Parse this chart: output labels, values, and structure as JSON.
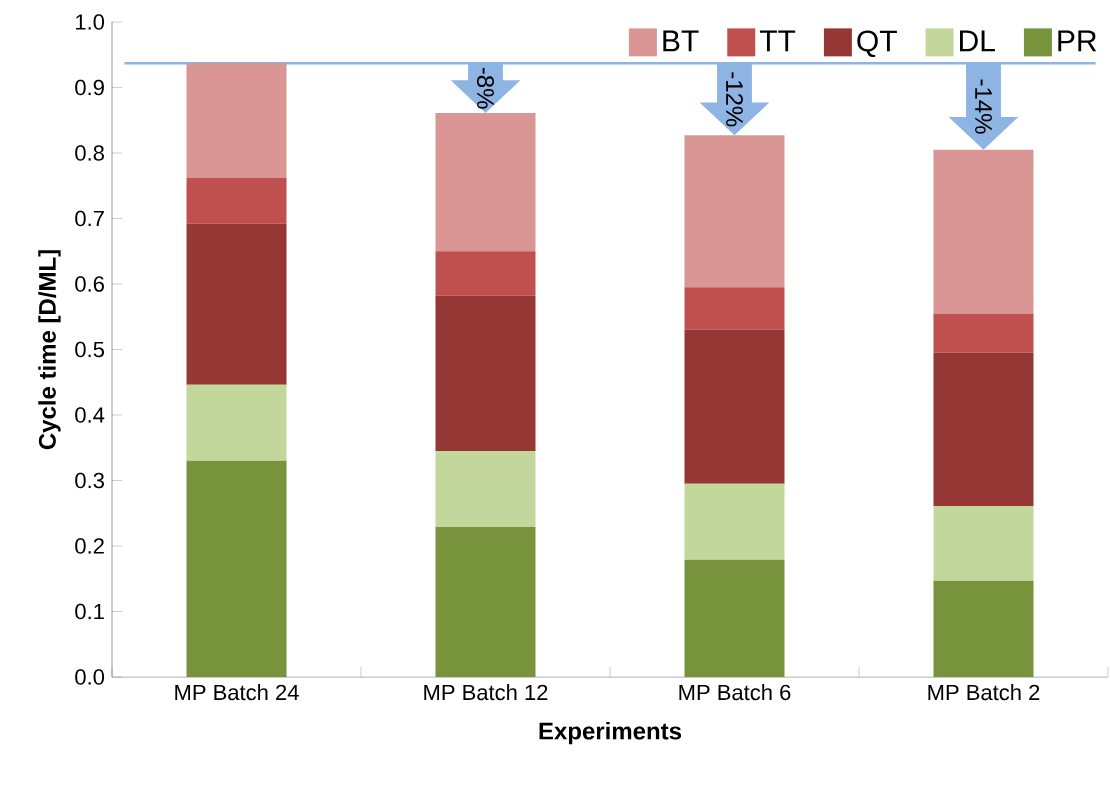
{
  "chart_data": {
    "type": "bar",
    "stacked": true,
    "xlabel": "Experiments",
    "ylabel": "Cycle time [D/ML]",
    "categories": [
      "MP Batch 24",
      "MP Batch 12",
      "MP Batch 6",
      "MP Batch 2"
    ],
    "series": [
      {
        "name": "PR",
        "color": "#77933c",
        "values": [
          0.33,
          0.229,
          0.179,
          0.147
        ]
      },
      {
        "name": "DL",
        "color": "#c3d69b",
        "values": [
          0.116,
          0.116,
          0.116,
          0.114
        ]
      },
      {
        "name": "QT",
        "color": "#953735",
        "values": [
          0.246,
          0.237,
          0.235,
          0.234
        ]
      },
      {
        "name": "TT",
        "color": "#c0504d",
        "values": [
          0.07,
          0.068,
          0.065,
          0.059
        ]
      },
      {
        "name": "BT",
        "color": "#d99694",
        "values": [
          0.175,
          0.211,
          0.232,
          0.251
        ]
      }
    ],
    "ylim": [
      0,
      1
    ],
    "yticks": [
      {
        "value": 0,
        "label": "0.0"
      },
      {
        "value": 0.1,
        "label": "0.1"
      },
      {
        "value": 0.2,
        "label": "0.2"
      },
      {
        "value": 0.3,
        "label": "0.3"
      },
      {
        "value": 0.4,
        "label": "0.4"
      },
      {
        "value": 0.5,
        "label": "0.5"
      },
      {
        "value": 0.6,
        "label": "0.6"
      },
      {
        "value": 0.7,
        "label": "0.7"
      },
      {
        "value": 0.8,
        "label": "0.8"
      },
      {
        "value": 0.9,
        "label": "0.9"
      },
      {
        "value": 1,
        "label": "1.0"
      }
    ],
    "ref_lines": [
      {
        "axis": "y",
        "value": 0.937,
        "color": "#8db4e2"
      }
    ],
    "annotations": [
      {
        "text": "-8%",
        "x": "MP Batch 12",
        "y": 0.861
      },
      {
        "text": "-12%",
        "x": "MP Batch 6",
        "y": 0.827
      },
      {
        "text": "-14%",
        "x": "MP Batch 2",
        "y": 0.805
      }
    ],
    "legend": "top right",
    "grid": false
  }
}
